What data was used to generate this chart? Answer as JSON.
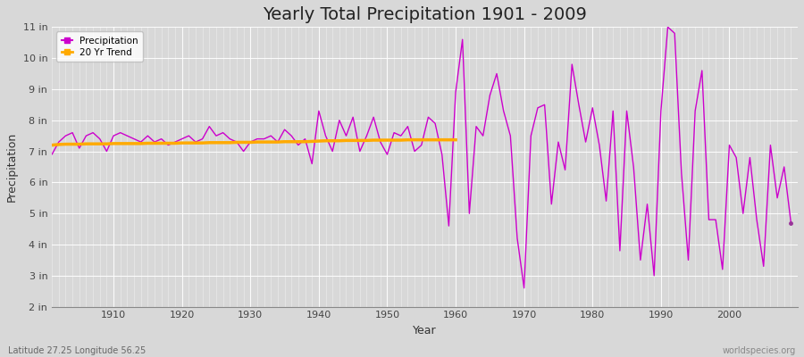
{
  "title": "Yearly Total Precipitation 1901 - 2009",
  "xlabel": "Year",
  "ylabel": "Precipitation",
  "lat_lon_label": "Latitude 27.25 Longitude 56.25",
  "watermark": "worldspecies.org",
  "bg_color": "#d8d8d8",
  "plot_bg_color": "#d8d8d8",
  "precip_color": "#cc00cc",
  "trend_color": "#ffaa00",
  "ylim": [
    2,
    11
  ],
  "yticks": [
    2,
    3,
    4,
    5,
    6,
    7,
    8,
    9,
    10,
    11
  ],
  "ytick_labels": [
    "2 in",
    "3 in",
    "4 in",
    "5 in",
    "6 in",
    "7 in",
    "8 in",
    "9 in",
    "10 in",
    "11 in"
  ],
  "years": [
    1901,
    1902,
    1903,
    1904,
    1905,
    1906,
    1907,
    1908,
    1909,
    1910,
    1911,
    1912,
    1913,
    1914,
    1915,
    1916,
    1917,
    1918,
    1919,
    1920,
    1921,
    1922,
    1923,
    1924,
    1925,
    1926,
    1927,
    1928,
    1929,
    1930,
    1931,
    1932,
    1933,
    1934,
    1935,
    1936,
    1937,
    1938,
    1939,
    1940,
    1941,
    1942,
    1943,
    1944,
    1945,
    1946,
    1947,
    1948,
    1949,
    1950,
    1951,
    1952,
    1953,
    1954,
    1955,
    1956,
    1957,
    1958,
    1959,
    1960,
    1961,
    1962,
    1963,
    1964,
    1965,
    1966,
    1967,
    1968,
    1969,
    1970,
    1971,
    1972,
    1973,
    1974,
    1975,
    1976,
    1977,
    1978,
    1979,
    1980,
    1981,
    1982,
    1983,
    1984,
    1985,
    1986,
    1987,
    1988,
    1989,
    1990,
    1991,
    1992,
    1993,
    1994,
    1995,
    1996,
    1997,
    1998,
    1999,
    2000,
    2001,
    2002,
    2003,
    2004,
    2005,
    2006,
    2007,
    2008,
    2009
  ],
  "precip_values": [
    6.9,
    7.3,
    7.5,
    7.6,
    7.1,
    7.5,
    7.6,
    7.4,
    7.0,
    7.5,
    7.6,
    7.5,
    7.4,
    7.3,
    7.5,
    7.3,
    7.4,
    7.2,
    7.3,
    7.4,
    7.5,
    7.3,
    7.4,
    7.8,
    7.5,
    7.6,
    7.4,
    7.3,
    7.0,
    7.3,
    7.4,
    7.4,
    7.5,
    7.3,
    7.7,
    7.5,
    7.2,
    7.4,
    6.6,
    8.3,
    7.5,
    7.0,
    8.0,
    7.5,
    8.1,
    7.0,
    7.5,
    8.1,
    7.3,
    6.9,
    7.6,
    7.5,
    7.8,
    7.0,
    7.2,
    8.1,
    7.9,
    6.9,
    4.6,
    8.9,
    10.6,
    5.0,
    7.8,
    7.5,
    8.8,
    9.5,
    8.3,
    7.5,
    4.2,
    2.6,
    7.5,
    8.4,
    8.5,
    5.3,
    7.3,
    6.4,
    9.8,
    8.5,
    7.3,
    8.4,
    7.2,
    5.4,
    8.3,
    3.8,
    8.3,
    6.5,
    3.5,
    5.3,
    3.0,
    8.3,
    11.0,
    10.8,
    6.3,
    3.5,
    8.3,
    9.6,
    4.8,
    4.8,
    3.2,
    7.2,
    6.8,
    5.0,
    6.8,
    4.8,
    3.3,
    7.2,
    5.5,
    6.5,
    4.7
  ],
  "trend_years": [
    1901,
    1902,
    1903,
    1904,
    1905,
    1906,
    1907,
    1908,
    1909,
    1910,
    1911,
    1912,
    1913,
    1914,
    1915,
    1916,
    1917,
    1918,
    1919,
    1920,
    1921,
    1922,
    1923,
    1924,
    1925,
    1926,
    1927,
    1928,
    1929,
    1930,
    1931,
    1932,
    1933,
    1934,
    1935,
    1936,
    1937,
    1938,
    1939,
    1940,
    1941,
    1942,
    1943,
    1944,
    1945,
    1946,
    1947,
    1948,
    1949,
    1950,
    1951,
    1952,
    1953,
    1954,
    1955,
    1956,
    1957,
    1958,
    1959,
    1960
  ],
  "trend_values": [
    7.2,
    7.22,
    7.23,
    7.23,
    7.23,
    7.24,
    7.24,
    7.24,
    7.24,
    7.25,
    7.25,
    7.25,
    7.25,
    7.25,
    7.26,
    7.26,
    7.26,
    7.26,
    7.26,
    7.27,
    7.27,
    7.27,
    7.27,
    7.28,
    7.28,
    7.28,
    7.28,
    7.29,
    7.29,
    7.29,
    7.3,
    7.3,
    7.3,
    7.3,
    7.31,
    7.31,
    7.31,
    7.31,
    7.32,
    7.33,
    7.34,
    7.34,
    7.34,
    7.35,
    7.35,
    7.35,
    7.35,
    7.36,
    7.36,
    7.36,
    7.36,
    7.36,
    7.37,
    7.37,
    7.37,
    7.37,
    7.37,
    7.37,
    7.37,
    7.37
  ],
  "dot_year": 2009,
  "dot_value": 4.7,
  "dot_color": "#993399",
  "xlim": [
    1901,
    2010
  ],
  "xticks": [
    1910,
    1920,
    1930,
    1940,
    1950,
    1960,
    1970,
    1980,
    1990,
    2000
  ],
  "title_fontsize": 14,
  "axis_fontsize": 9,
  "tick_fontsize": 8
}
